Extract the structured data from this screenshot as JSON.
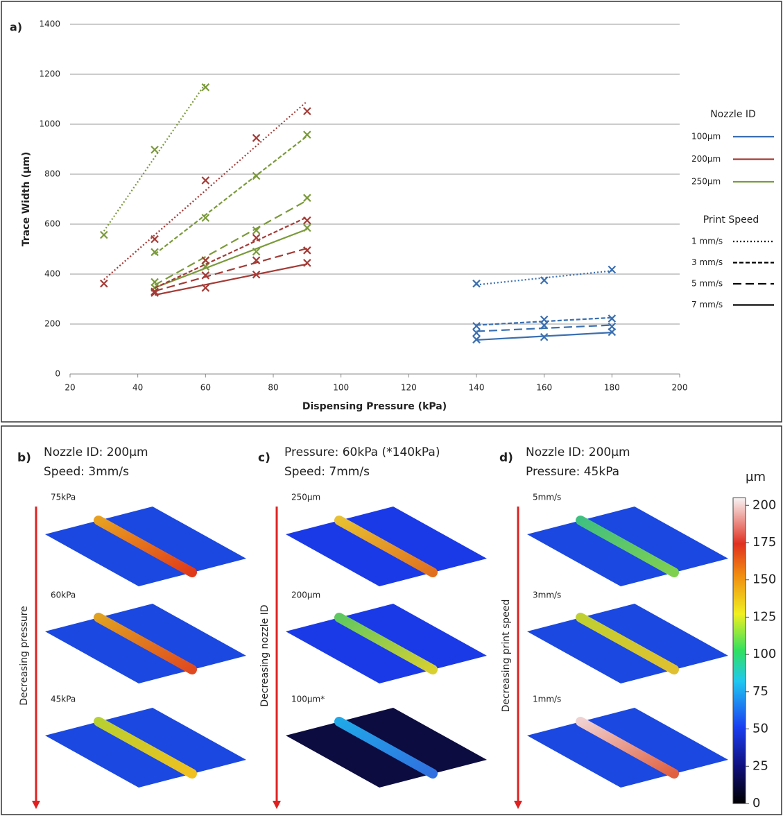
{
  "chart_data": {
    "type": "line",
    "label": "a)",
    "x_label": "Dispensing Pressure (kPa)",
    "y_label": "Trace Width (µm)",
    "xlim": [
      20,
      200
    ],
    "xticks": [
      20,
      40,
      60,
      80,
      100,
      120,
      140,
      160,
      180,
      200
    ],
    "ylim": [
      0,
      1400
    ],
    "yticks": [
      0,
      200,
      400,
      600,
      800,
      1000,
      1200,
      1400
    ],
    "grid": true,
    "trendline": "linear",
    "legend": {
      "nozzle_title": "Nozzle ID",
      "nozzle": [
        {
          "label": "100µm",
          "color": "#3a6fb0"
        },
        {
          "label": "200µm",
          "color": "#a33b36"
        },
        {
          "label": "250µm",
          "color": "#7a9a3a"
        }
      ],
      "speed_title": "Print Speed",
      "speed": [
        {
          "label": "1 mm/s",
          "dash": "2 3"
        },
        {
          "label": "3 mm/s",
          "dash": "6 3"
        },
        {
          "label": "5 mm/s",
          "dash": "12 6"
        },
        {
          "label": "7 mm/s",
          "dash": "none"
        }
      ]
    },
    "series": [
      {
        "color": "#7a9a3a",
        "dash": "2 3",
        "x": [
          30,
          45,
          60
        ],
        "values": [
          557,
          898,
          1148
        ]
      },
      {
        "color": "#7a9a3a",
        "dash": "6 3",
        "x": [
          45,
          60,
          75,
          90
        ],
        "values": [
          488,
          625,
          793,
          958
        ]
      },
      {
        "color": "#7a9a3a",
        "dash": "12 6",
        "x": [
          45,
          60,
          75,
          90
        ],
        "values": [
          368,
          455,
          575,
          705
        ]
      },
      {
        "color": "#7a9a3a",
        "dash": "none",
        "x": [
          45,
          60,
          75,
          90
        ],
        "values": [
          345,
          430,
          490,
          585
        ]
      },
      {
        "color": "#a33b36",
        "dash": "2 3",
        "x": [
          30,
          45,
          60,
          75,
          90
        ],
        "values": [
          362,
          540,
          775,
          945,
          1052
        ]
      },
      {
        "color": "#a33b36",
        "dash": "6 3",
        "x": [
          45,
          60,
          75,
          90
        ],
        "values": [
          330,
          455,
          545,
          615
        ]
      },
      {
        "color": "#a33b36",
        "dash": "12 6",
        "x": [
          45,
          60,
          75,
          90
        ],
        "values": [
          325,
          395,
          455,
          495
        ]
      },
      {
        "color": "#a33b36",
        "dash": "none",
        "x": [
          45,
          60,
          75,
          90
        ],
        "values": [
          325,
          345,
          398,
          445
        ]
      },
      {
        "color": "#3a6fb0",
        "dash": "2 3",
        "x": [
          140,
          160,
          180
        ],
        "values": [
          362,
          375,
          418
        ]
      },
      {
        "color": "#3a6fb0",
        "dash": "6 3",
        "x": [
          140,
          160,
          180
        ],
        "values": [
          192,
          218,
          222
        ]
      },
      {
        "color": "#3a6fb0",
        "dash": "12 6",
        "x": [
          140,
          160,
          180
        ],
        "values": [
          165,
          195,
          190
        ]
      },
      {
        "color": "#3a6fb0",
        "dash": "none",
        "x": [
          140,
          160,
          180
        ],
        "values": [
          138,
          148,
          168
        ]
      }
    ]
  },
  "panels": [
    {
      "label": "b)",
      "lines": [
        "Nozzle ID: 200µm",
        "Speed: 3mm/s"
      ],
      "arrow_label": "Decreasing pressure",
      "images": [
        "75kPa",
        "60kPa",
        "45kPa"
      ]
    },
    {
      "label": "c)",
      "lines": [
        "Pressure: 60kPa (*140kPa)",
        "Speed: 7mm/s"
      ],
      "arrow_label": "Decreasing nozzle ID",
      "images": [
        "250µm",
        "200µm",
        "100µm*"
      ]
    },
    {
      "label": "d)",
      "lines": [
        "Nozzle ID: 200µm",
        "Pressure: 45kPa"
      ],
      "arrow_label": "Decreasing print speed",
      "images": [
        "5mm/s",
        "3mm/s",
        "1mm/s"
      ]
    }
  ],
  "colorbar": {
    "unit": "µm",
    "lim": [
      0,
      205
    ],
    "ticks": [
      0,
      25,
      50,
      75,
      100,
      125,
      150,
      175,
      200
    ]
  }
}
